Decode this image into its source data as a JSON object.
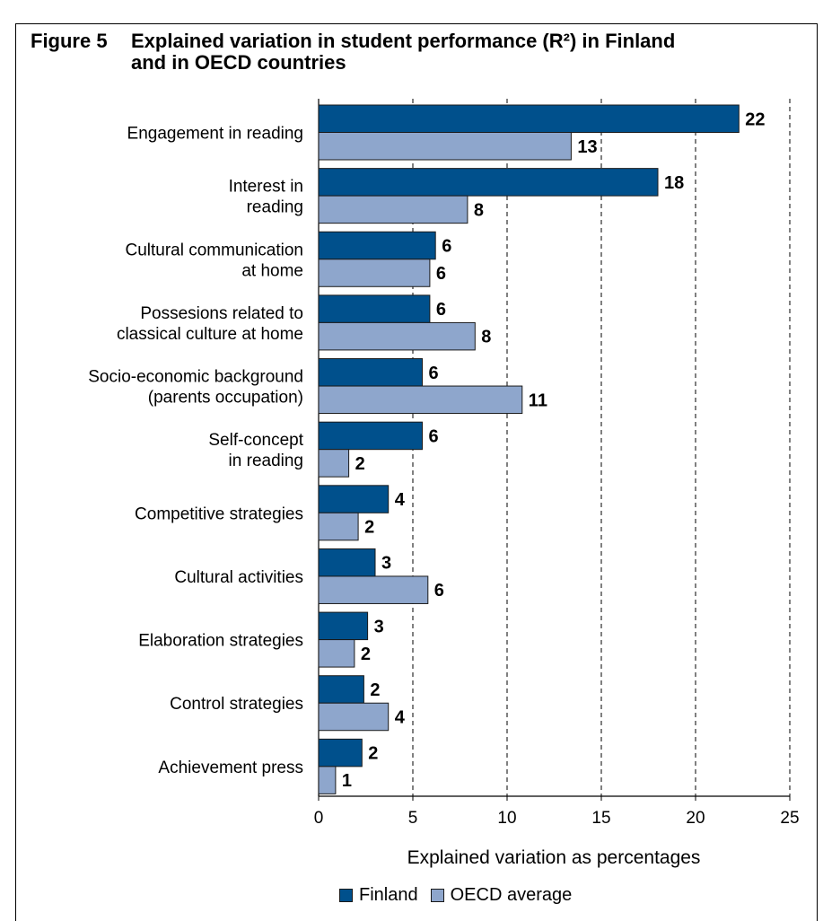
{
  "figure": {
    "number": "Figure 5",
    "title_line1": "Explained variation in student performance (R²) in Finland",
    "title_line2": "and in OECD countries"
  },
  "colors": {
    "finland": "#00508c",
    "oecd": "#8ea6cc",
    "bar_border": "#1a1a1a",
    "grid": "#000000"
  },
  "chart_data": {
    "type": "bar",
    "orientation": "horizontal",
    "categories": [
      [
        "Engagement in reading"
      ],
      [
        "Interest in",
        "reading"
      ],
      [
        "Cultural communication",
        "at home"
      ],
      [
        "Possesions related to",
        "classical culture at home"
      ],
      [
        "Socio-economic background",
        "(parents  occupation)"
      ],
      [
        "Self-concept",
        "in reading"
      ],
      [
        "Competitive strategies"
      ],
      [
        "Cultural activities"
      ],
      [
        "Elaboration strategies"
      ],
      [
        "Control strategies"
      ],
      [
        "Achievement press"
      ]
    ],
    "series": [
      {
        "name": "Finland",
        "values": [
          22.3,
          18,
          6.2,
          5.9,
          5.5,
          5.5,
          3.7,
          3.0,
          2.6,
          2.4,
          2.3
        ],
        "labels": [
          "22",
          "18",
          "6",
          "6",
          "6",
          "6",
          "4",
          "3",
          "3",
          "2",
          "2"
        ]
      },
      {
        "name": "OECD average",
        "values": [
          13.4,
          7.9,
          5.9,
          8.3,
          10.8,
          1.6,
          2.1,
          5.8,
          1.9,
          3.7,
          0.9
        ],
        "labels": [
          "13",
          "8",
          "6",
          "8",
          "11",
          "2",
          "2",
          "6",
          "2",
          "4",
          "1"
        ]
      }
    ],
    "xlabel": "Explained variation as percentages",
    "xlim": [
      0,
      25
    ],
    "xticks": [
      "0",
      "5",
      "10",
      "15",
      "20",
      "25"
    ],
    "grid": "vertical dashed",
    "legend_position": "bottom"
  }
}
